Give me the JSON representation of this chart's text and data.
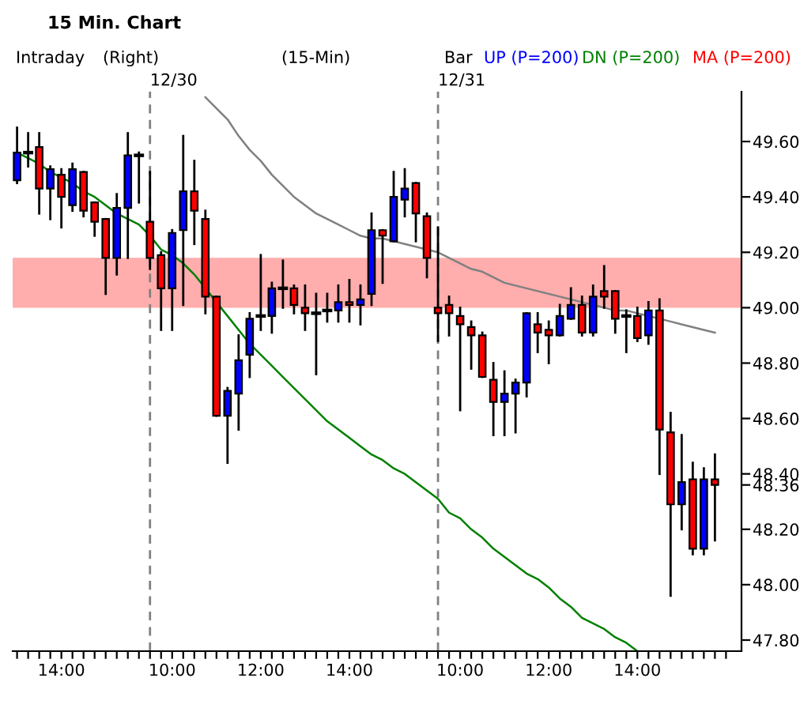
{
  "chart_data": {
    "type": "candlestick",
    "title": "15 Min. Chart",
    "annotations": [
      "Intraday",
      "(Right)",
      "(15-Min)",
      "Bar",
      "UP (P=200)",
      "MA (P=200)",
      "12/30",
      "12/31"
    ],
    "categories": [
      null,
      null,
      null,
      null,
      "14:00",
      null,
      null,
      null,
      null,
      null,
      null,
      null,
      null,
      null,
      "10:00",
      null,
      null,
      null,
      null,
      null,
      null,
      null,
      "12:00",
      null,
      null,
      null,
      null,
      null,
      null,
      null,
      "14:00",
      null,
      null,
      null,
      null,
      null,
      null,
      null,
      null,
      null,
      "10:00",
      null,
      null,
      null,
      null,
      null,
      null,
      null,
      "12:00",
      null,
      null,
      null,
      null,
      null,
      null,
      null,
      "14:00",
      null,
      null,
      null,
      null,
      null,
      null,
      null
    ],
    "ohlc": [
      [
        49.46,
        49.65,
        49.45,
        49.56
      ],
      [
        49.56,
        49.63,
        49.51,
        49.56
      ],
      [
        49.58,
        49.63,
        49.34,
        49.43
      ],
      [
        49.43,
        49.51,
        49.32,
        49.5
      ],
      [
        49.48,
        49.5,
        49.29,
        49.4
      ],
      [
        49.37,
        49.52,
        49.35,
        49.5
      ],
      [
        49.49,
        49.49,
        49.33,
        49.35
      ],
      [
        49.38,
        49.38,
        49.26,
        49.31
      ],
      [
        49.32,
        49.32,
        49.05,
        49.18
      ],
      [
        49.18,
        49.41,
        49.12,
        49.36
      ],
      [
        49.36,
        49.63,
        49.18,
        49.55
      ],
      [
        49.55,
        49.56,
        49.38,
        49.55
      ],
      [
        49.31,
        49.49,
        49.14,
        49.18
      ],
      [
        49.19,
        49.2,
        48.92,
        49.07
      ],
      [
        49.07,
        49.28,
        48.92,
        49.27
      ],
      [
        49.28,
        49.62,
        49.01,
        49.42
      ],
      [
        49.42,
        49.53,
        49.23,
        49.35
      ],
      [
        49.32,
        49.35,
        48.98,
        49.04
      ],
      [
        49.04,
        49.04,
        48.61,
        48.61
      ],
      [
        48.61,
        48.71,
        48.44,
        48.7
      ],
      [
        48.69,
        48.9,
        48.56,
        48.81
      ],
      [
        48.83,
        48.98,
        48.75,
        48.96
      ],
      [
        48.97,
        49.19,
        48.92,
        48.97
      ],
      [
        48.97,
        49.09,
        48.91,
        49.07
      ],
      [
        49.07,
        49.17,
        49.0,
        49.07
      ],
      [
        49.07,
        49.08,
        48.98,
        49.01
      ],
      [
        49.0,
        49.08,
        48.92,
        48.98
      ],
      [
        48.98,
        49.05,
        48.76,
        48.98
      ],
      [
        48.99,
        49.05,
        48.95,
        48.99
      ],
      [
        48.99,
        49.08,
        48.95,
        49.02
      ],
      [
        49.02,
        49.1,
        48.95,
        49.01
      ],
      [
        49.01,
        49.08,
        48.94,
        49.03
      ],
      [
        49.05,
        49.34,
        49.01,
        49.28
      ],
      [
        49.28,
        49.28,
        49.09,
        49.26
      ],
      [
        49.24,
        49.49,
        49.24,
        49.4
      ],
      [
        49.39,
        49.5,
        49.33,
        49.43
      ],
      [
        49.45,
        49.45,
        49.24,
        49.34
      ],
      [
        49.33,
        49.34,
        49.11,
        49.18
      ],
      [
        49.0,
        49.29,
        48.88,
        48.98
      ],
      [
        49.01,
        49.04,
        48.9,
        48.98
      ],
      [
        48.97,
        49.0,
        48.63,
        48.94
      ],
      [
        48.93,
        48.95,
        48.78,
        48.9
      ],
      [
        48.9,
        48.91,
        48.75,
        48.75
      ],
      [
        48.74,
        48.8,
        48.54,
        48.66
      ],
      [
        48.66,
        48.77,
        48.54,
        48.69
      ],
      [
        48.69,
        48.74,
        48.55,
        48.73
      ],
      [
        48.73,
        48.98,
        48.68,
        48.98
      ],
      [
        48.94,
        48.98,
        48.84,
        48.91
      ],
      [
        48.92,
        48.95,
        48.8,
        48.9
      ],
      [
        48.9,
        49.01,
        48.9,
        48.97
      ],
      [
        48.96,
        49.07,
        48.96,
        49.01
      ],
      [
        49.01,
        49.04,
        48.9,
        48.91
      ],
      [
        48.91,
        49.08,
        48.9,
        49.04
      ],
      [
        49.06,
        49.15,
        49.0,
        49.04
      ],
      [
        49.06,
        49.06,
        48.91,
        48.96
      ],
      [
        48.97,
        48.99,
        48.84,
        48.97
      ],
      [
        48.97,
        49.0,
        48.88,
        48.89
      ],
      [
        48.9,
        49.02,
        48.87,
        48.99
      ],
      [
        48.99,
        49.03,
        48.4,
        48.56
      ],
      [
        48.55,
        48.62,
        47.96,
        48.29
      ],
      [
        48.29,
        48.54,
        48.2,
        48.37
      ],
      [
        48.38,
        48.44,
        48.11,
        48.13
      ],
      [
        48.13,
        48.42,
        48.11,
        48.38
      ],
      [
        48.38,
        48.47,
        48.16,
        48.36
      ]
    ],
    "colors": [
      "#0000ff",
      "#000000",
      "#ff0000",
      "#0000ff",
      "#ff0000",
      "#0000ff",
      "#ff0000",
      "#ff0000",
      "#ff0000",
      "#0000ff",
      "#0000ff",
      "#000000",
      "#ff0000",
      "#ff0000",
      "#0000ff",
      "#0000ff",
      "#ff0000",
      "#ff0000",
      "#ff0000",
      "#0000ff",
      "#0000ff",
      "#0000ff",
      "#000000",
      "#0000ff",
      "#000000",
      "#ff0000",
      "#ff0000",
      "#000000",
      "#000000",
      "#0000ff",
      "#ff0000",
      "#0000ff",
      "#0000ff",
      "#ff0000",
      "#0000ff",
      "#0000ff",
      "#ff0000",
      "#ff0000",
      "#ff0000",
      "#ff0000",
      "#ff0000",
      "#ff0000",
      "#ff0000",
      "#ff0000",
      "#0000ff",
      "#0000ff",
      "#0000ff",
      "#ff0000",
      "#ff0000",
      "#0000ff",
      "#0000ff",
      "#ff0000",
      "#0000ff",
      "#ff0000",
      "#ff0000",
      "#000000",
      "#ff0000",
      "#0000ff",
      "#ff0000",
      "#ff0000",
      "#0000ff",
      "#ff0000",
      "#0000ff",
      "#ff0000"
    ],
    "series": [
      {
        "type": "line",
        "name": "DN (P=200)",
        "color": "#008000",
        "values": [
          49.56,
          49.54,
          49.52,
          49.49,
          49.47,
          49.45,
          49.42,
          49.4,
          49.37,
          49.34,
          49.32,
          49.3,
          49.26,
          49.21,
          49.19,
          49.16,
          49.12,
          49.07,
          49.02,
          48.97,
          48.92,
          48.87,
          48.83,
          48.79,
          48.75,
          48.71,
          48.67,
          48.63,
          48.59,
          48.56,
          48.53,
          48.5,
          48.47,
          48.45,
          48.42,
          48.4,
          48.37,
          48.34,
          48.31,
          48.26,
          48.24,
          48.2,
          48.17,
          48.13,
          48.1,
          48.07,
          48.04,
          48.02,
          47.99,
          47.95,
          47.92,
          47.88,
          47.86,
          47.84,
          47.81,
          47.79,
          47.76,
          null,
          null,
          null,
          null,
          null,
          null,
          null
        ]
      },
      {
        "type": "line",
        "color": "#808080",
        "values": [
          null,
          null,
          null,
          null,
          null,
          null,
          null,
          null,
          null,
          null,
          null,
          null,
          null,
          null,
          null,
          null,
          null,
          49.76,
          49.72,
          49.68,
          49.62,
          49.57,
          49.53,
          49.48,
          49.44,
          49.4,
          49.37,
          49.34,
          49.32,
          49.3,
          49.28,
          49.26,
          49.25,
          49.25,
          49.24,
          49.23,
          49.22,
          49.21,
          49.2,
          49.18,
          49.16,
          49.14,
          49.13,
          49.11,
          49.09,
          49.08,
          49.07,
          49.06,
          49.05,
          49.04,
          49.03,
          49.02,
          49.01,
          49.0,
          48.99,
          48.99,
          48.98,
          48.97,
          48.96,
          48.95,
          48.94,
          48.93,
          48.92,
          48.91
        ]
      }
    ],
    "bands": [
      {
        "axis": "y",
        "from": 49.0,
        "to": 49.18,
        "color": "#ff9999"
      }
    ],
    "ylim": [
      47.76,
      49.78
    ],
    "yticks": [
      {
        "value": 47.8,
        "label": "47.80"
      },
      {
        "value": 48.0,
        "label": "48.00"
      },
      {
        "value": 48.2,
        "label": "48.20"
      },
      {
        "value": 48.36,
        "label": "48.36"
      },
      {
        "value": 48.4,
        "label": "48.40"
      },
      {
        "value": 48.6,
        "label": "48.60"
      },
      {
        "value": 48.8,
        "label": "48.80"
      },
      {
        "value": 49.0,
        "label": "49.00"
      },
      {
        "value": 49.2,
        "label": "49.20"
      },
      {
        "value": 49.4,
        "label": "49.40"
      },
      {
        "value": 49.6,
        "label": "49.60"
      }
    ],
    "legend": "top"
  }
}
